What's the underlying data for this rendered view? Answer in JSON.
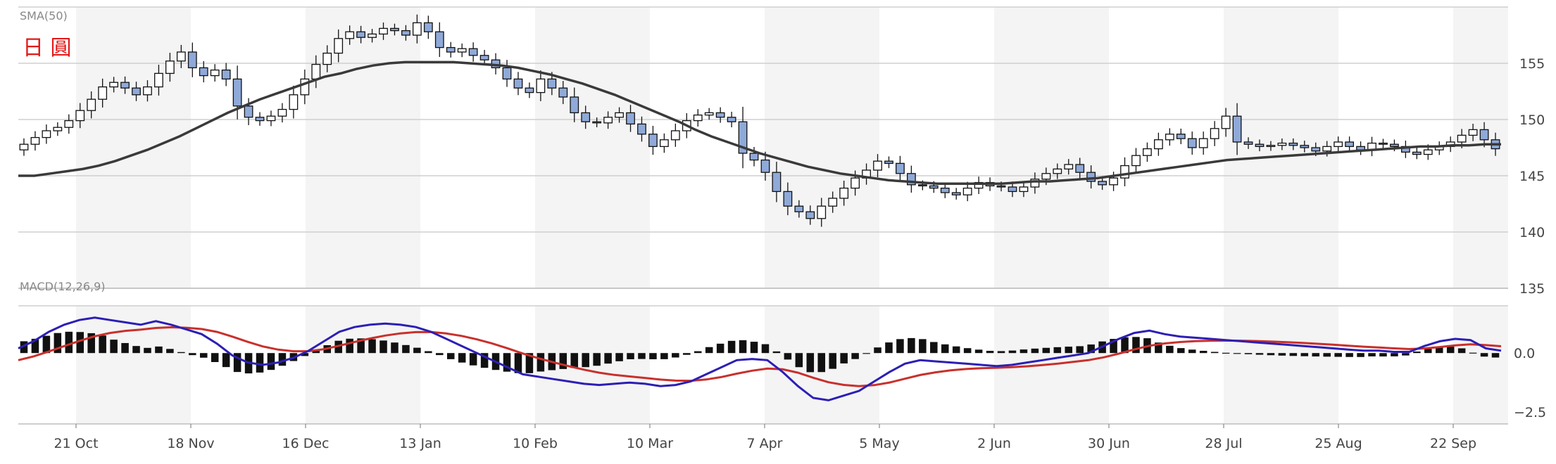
{
  "chart_data": [
    {
      "type": "candlestick",
      "indicator_label": "SMA(50)",
      "currency_label": "日 圓",
      "y_ticks": [
        135,
        140,
        145,
        150,
        155
      ],
      "ylim": [
        135,
        160
      ],
      "x_tick_labels": [
        "21 Oct",
        "18 Nov",
        "16 Dec",
        "13 Jan",
        "10 Feb",
        "10 Mar",
        "7 Apr",
        "5 May",
        "2 Jun",
        "30 Jun",
        "28 Jul",
        "25 Aug",
        "22 Sep"
      ],
      "grid": true,
      "colors": {
        "up_body": "#ffffff",
        "down_body": "#8fa9d8",
        "candle_outline": "#111111",
        "sma_line": "#3a3a3a",
        "band": "#f4f4f4"
      },
      "close": [
        147.8,
        148.4,
        149.0,
        149.3,
        149.9,
        150.8,
        151.8,
        152.9,
        153.3,
        152.8,
        152.2,
        152.9,
        154.1,
        155.2,
        156.0,
        154.6,
        153.9,
        154.4,
        153.6,
        151.2,
        150.2,
        149.9,
        150.3,
        150.9,
        152.2,
        153.6,
        154.9,
        155.9,
        157.2,
        157.8,
        157.3,
        157.6,
        158.1,
        157.9,
        157.5,
        158.6,
        157.8,
        156.4,
        156.0,
        156.3,
        155.7,
        155.3,
        154.6,
        153.6,
        152.8,
        152.4,
        153.6,
        152.8,
        152.0,
        150.6,
        149.8,
        149.7,
        150.2,
        150.6,
        149.6,
        148.7,
        147.6,
        148.2,
        149.0,
        149.9,
        150.4,
        150.6,
        150.2,
        149.8,
        147.0,
        146.4,
        145.3,
        143.6,
        142.3,
        141.8,
        141.2,
        142.3,
        143.0,
        143.9,
        144.8,
        145.5,
        146.3,
        146.1,
        145.2,
        144.2,
        144.1,
        143.9,
        143.5,
        143.3,
        143.9,
        144.4,
        144.1,
        144.0,
        143.6,
        144.0,
        144.7,
        145.2,
        145.6,
        146.0,
        145.3,
        144.5,
        144.2,
        144.8,
        145.9,
        146.8,
        147.4,
        148.2,
        148.7,
        148.3,
        147.5,
        148.3,
        149.2,
        150.3,
        148.0,
        147.8,
        147.6,
        147.7,
        147.9,
        147.7,
        147.5,
        147.2,
        147.6,
        148.0,
        147.6,
        147.3,
        147.9,
        147.8,
        147.6,
        147.1,
        146.9,
        147.3,
        147.6,
        148.0,
        148.6,
        149.1,
        148.2,
        147.4
      ],
      "sma": [
        145.0,
        145.0,
        145.2,
        145.4,
        145.6,
        145.9,
        146.3,
        146.8,
        147.3,
        147.9,
        148.5,
        149.2,
        149.9,
        150.6,
        151.2,
        151.8,
        152.3,
        152.8,
        153.3,
        153.8,
        154.1,
        154.5,
        154.8,
        155.0,
        155.1,
        155.1,
        155.1,
        155.1,
        155.0,
        154.9,
        154.8,
        154.6,
        154.3,
        154.0,
        153.6,
        153.2,
        152.7,
        152.2,
        151.6,
        151.0,
        150.4,
        149.8,
        149.1,
        148.5,
        148.0,
        147.5,
        147.0,
        146.6,
        146.2,
        145.8,
        145.5,
        145.2,
        145.0,
        144.8,
        144.6,
        144.5,
        144.4,
        144.3,
        144.3,
        144.3,
        144.3,
        144.3,
        144.4,
        144.5,
        144.5,
        144.6,
        144.7,
        144.8,
        145.0,
        145.2,
        145.4,
        145.6,
        145.8,
        146.0,
        146.2,
        146.4,
        146.5,
        146.6,
        146.7,
        146.8,
        146.9,
        147.0,
        147.1,
        147.2,
        147.3,
        147.4,
        147.5,
        147.6,
        147.6,
        147.7,
        147.7,
        147.8,
        147.8
      ]
    },
    {
      "type": "line",
      "indicator_label": "MACD(12,26,9)",
      "y_ticks": [
        0.0,
        -2.5
      ],
      "y_tick_labels": [
        "0.0",
        "−2.5"
      ],
      "ylim": [
        -3.0,
        2.0
      ],
      "colors": {
        "macd_line": "#2c1fb5",
        "signal_line": "#c9302c",
        "histogram": "#111111"
      },
      "macd": [
        0.2,
        0.5,
        0.9,
        1.2,
        1.4,
        1.5,
        1.4,
        1.3,
        1.2,
        1.35,
        1.2,
        1.0,
        0.8,
        0.4,
        -0.1,
        -0.4,
        -0.5,
        -0.4,
        -0.2,
        0.1,
        0.5,
        0.9,
        1.1,
        1.2,
        1.25,
        1.2,
        1.1,
        0.9,
        0.6,
        0.3,
        0.0,
        -0.3,
        -0.6,
        -0.9,
        -1.0,
        -1.1,
        -1.2,
        -1.3,
        -1.35,
        -1.3,
        -1.25,
        -1.3,
        -1.4,
        -1.35,
        -1.2,
        -0.9,
        -0.6,
        -0.3,
        -0.25,
        -0.3,
        -0.8,
        -1.4,
        -1.9,
        -2.0,
        -1.8,
        -1.6,
        -1.2,
        -0.8,
        -0.45,
        -0.3,
        -0.35,
        -0.4,
        -0.45,
        -0.5,
        -0.55,
        -0.5,
        -0.4,
        -0.3,
        -0.2,
        -0.1,
        0.0,
        0.3,
        0.6,
        0.85,
        0.95,
        0.8,
        0.7,
        0.65,
        0.6,
        0.55,
        0.5,
        0.45,
        0.4,
        0.35,
        0.3,
        0.25,
        0.2,
        0.15,
        0.1,
        0.1,
        0.05,
        0.05,
        0.3,
        0.5,
        0.6,
        0.55,
        0.2,
        0.1
      ]
    }
  ]
}
